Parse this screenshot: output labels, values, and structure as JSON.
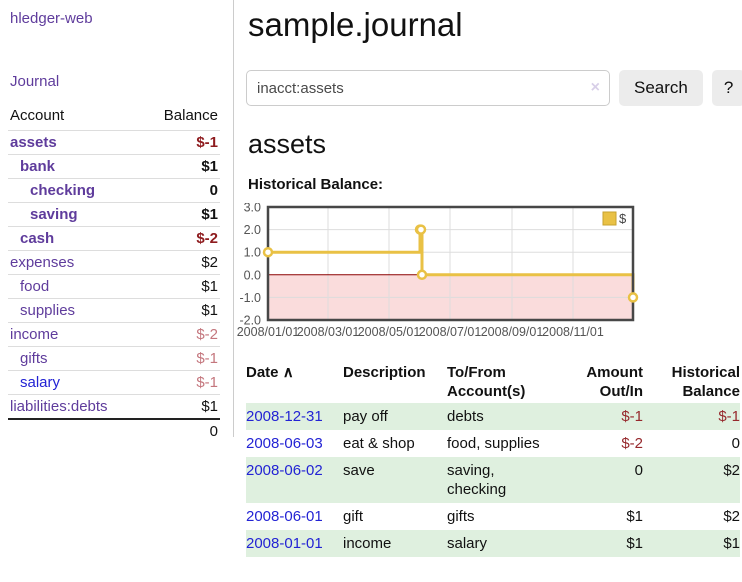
{
  "colors": {
    "link_purple": "#5f3c9c",
    "link_blue": "#2323d4",
    "negative_strong": "#8e1b1e",
    "negative_soft": "#c4767d",
    "negative_table": "#96282c",
    "row_stripe_green": "#dff0df",
    "series_gold": "#e9c145",
    "chart_negative_region": "#fadcdc",
    "chart_zero_line": "#8b0000",
    "button_bg": "#ececec"
  },
  "sidebar": {
    "brand": "hledger-web",
    "journal_link": "Journal",
    "table": {
      "headers": [
        "Account",
        "Balance"
      ],
      "rows": [
        {
          "name": "assets",
          "indent": 1,
          "bold": true,
          "balance": "$-1",
          "neg": "strong",
          "link": "purple"
        },
        {
          "name": "bank",
          "indent": 2,
          "bold": true,
          "balance": "$1",
          "neg": "none",
          "link": "purple"
        },
        {
          "name": "checking",
          "indent": 3,
          "bold": true,
          "balance": "0",
          "neg": "none",
          "link": "purple"
        },
        {
          "name": "saving",
          "indent": 3,
          "bold": true,
          "balance": "$1",
          "neg": "none",
          "link": "purple"
        },
        {
          "name": "cash",
          "indent": 2,
          "bold": true,
          "balance": "$-2",
          "neg": "strong",
          "link": "purple"
        },
        {
          "name": "expenses",
          "indent": 1,
          "bold": false,
          "balance": "$2",
          "neg": "none",
          "link": "purple"
        },
        {
          "name": "food",
          "indent": 2,
          "bold": false,
          "balance": "$1",
          "neg": "none",
          "link": "purple"
        },
        {
          "name": "supplies",
          "indent": 2,
          "bold": false,
          "balance": "$1",
          "neg": "none",
          "link": "purple"
        },
        {
          "name": "income",
          "indent": 1,
          "bold": false,
          "balance": "$-2",
          "neg": "soft",
          "link": "purple"
        },
        {
          "name": "gifts",
          "indent": 2,
          "bold": false,
          "balance": "$-1",
          "neg": "soft",
          "link": "purple"
        },
        {
          "name": "salary",
          "indent": 2,
          "bold": false,
          "balance": "$-1",
          "neg": "soft",
          "link": "blue"
        },
        {
          "name": "liabilities:debts",
          "indent": 1,
          "bold": false,
          "balance": "$1",
          "neg": "none",
          "link": "purple"
        }
      ],
      "total": "0"
    }
  },
  "main": {
    "title": "sample.journal",
    "search": {
      "value": "inacct:assets",
      "clear_icon": "×",
      "search_label": "Search",
      "help_label": "?"
    },
    "account_heading": "assets",
    "chart_label": "Historical Balance:"
  },
  "chart_data": {
    "type": "line",
    "step": true,
    "title": "Historical Balance",
    "xlim": [
      "2008-01-01",
      "2008-12-31"
    ],
    "ylim": [
      -2,
      3
    ],
    "grid": true,
    "legend_position": "top-right",
    "negative_region_color": "#fadcdc",
    "zero_line_color": "#8b0000",
    "grid_color": "#dddddd",
    "axis_label_color": "#545454",
    "series": [
      {
        "name": "$",
        "color": "#e9c145",
        "points": [
          [
            "2008-01-01",
            1
          ],
          [
            "2008-06-01",
            2
          ],
          [
            "2008-06-02",
            2
          ],
          [
            "2008-06-03",
            0
          ],
          [
            "2008-12-31",
            -1
          ]
        ]
      }
    ],
    "y_ticks": [
      [
        3,
        "3.0"
      ],
      [
        2,
        "2.0"
      ],
      [
        1,
        "1.0"
      ],
      [
        0,
        "0.0"
      ],
      [
        -1,
        "-1.0"
      ],
      [
        -2,
        "-2.0"
      ]
    ],
    "x_ticks": [
      [
        "2008-01-01",
        "2008/01/01"
      ],
      [
        "2008-03-01",
        "2008/03/01"
      ],
      [
        "2008-05-01",
        "2008/05/01"
      ],
      [
        "2008-07-01",
        "2008/07/01"
      ],
      [
        "2008-09-01",
        "2008/09/01"
      ],
      [
        "2008-11-01",
        "2008/11/01"
      ]
    ]
  },
  "register": {
    "sort_icon": "∧",
    "headers": [
      {
        "lines": [
          "Date"
        ],
        "align": "left"
      },
      {
        "lines": [
          "Description"
        ],
        "align": "left"
      },
      {
        "lines": [
          "To/From",
          "Account(s)"
        ],
        "align": "left"
      },
      {
        "lines": [
          "Amount",
          "Out/In"
        ],
        "align": "right"
      },
      {
        "lines": [
          "Historical",
          "Balance"
        ],
        "align": "right"
      }
    ],
    "rows": [
      {
        "date": "2008-12-31",
        "description": "pay off",
        "accounts": "debts",
        "amount": "$-1",
        "balance": "$-1"
      },
      {
        "date": "2008-06-03",
        "description": "eat & shop",
        "accounts": "food, supplies",
        "amount": "$-2",
        "balance": "0"
      },
      {
        "date": "2008-06-02",
        "description": "save",
        "accounts": "saving, checking",
        "amount": "0",
        "balance": "$2"
      },
      {
        "date": "2008-06-01",
        "description": "gift",
        "accounts": "gifts",
        "amount": "$1",
        "balance": "$2"
      },
      {
        "date": "2008-01-01",
        "description": "income",
        "accounts": "salary",
        "amount": "$1",
        "balance": "$1"
      }
    ]
  }
}
